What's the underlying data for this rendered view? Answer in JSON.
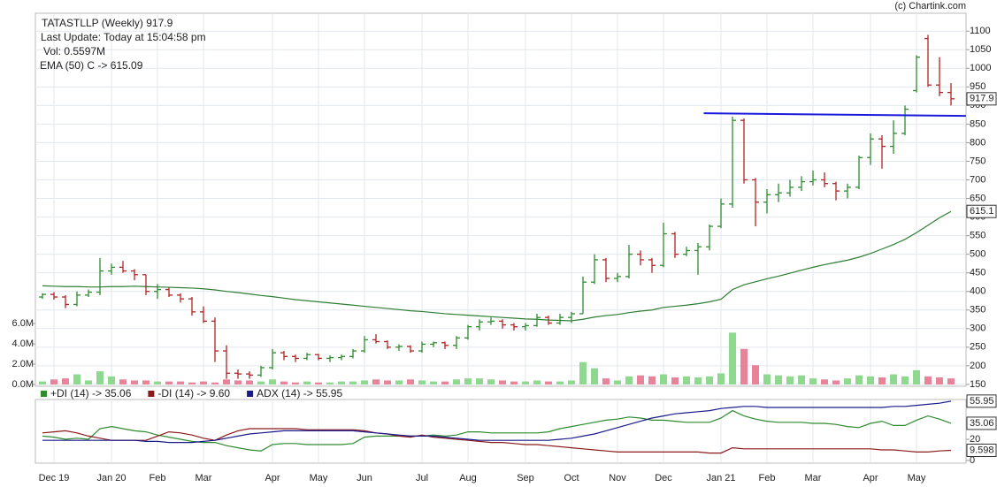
{
  "chart_data": {
    "type": "ohlc",
    "title": "TATASTLLP (Weekly) 917.9",
    "last_update": "Last Update: Today at 15:04:58 pm",
    "volume_text": "Vol: 0.5597M",
    "credit": "(c) Chartink.com",
    "categories": [
      null,
      "Dec 19",
      null,
      null,
      null,
      null,
      "Jan 20",
      null,
      null,
      null,
      "Feb",
      null,
      null,
      null,
      "Mar",
      null,
      null,
      null,
      null,
      null,
      "Apr",
      null,
      null,
      null,
      "May",
      null,
      null,
      null,
      "Jun",
      null,
      null,
      null,
      null,
      "Jul",
      null,
      null,
      null,
      "Aug",
      null,
      null,
      null,
      null,
      "Sep",
      null,
      null,
      null,
      "Oct",
      null,
      null,
      null,
      "Nov",
      null,
      null,
      null,
      "Dec",
      null,
      null,
      null,
      null,
      "Jan 21",
      null,
      null,
      null,
      "Feb",
      null,
      null,
      null,
      "Mar",
      null,
      null,
      null,
      null,
      "Apr",
      null,
      null,
      null,
      "May",
      null,
      null,
      null
    ],
    "open": [
      385,
      392,
      385,
      365,
      390,
      398,
      455,
      465,
      455,
      445,
      400,
      405,
      390,
      380,
      345,
      320,
      240,
      180,
      178,
      175,
      195,
      235,
      225,
      220,
      230,
      220,
      222,
      225,
      240,
      270,
      265,
      250,
      252,
      240,
      258,
      262,
      255,
      275,
      305,
      318,
      320,
      310,
      305,
      308,
      330,
      315,
      330,
      340,
      425,
      485,
      435,
      440,
      500,
      485,
      470,
      555,
      500,
      510,
      520,
      575,
      635,
      860,
      700,
      640,
      660,
      665,
      680,
      695,
      700,
      690,
      670,
      680,
      760,
      810,
      790,
      825,
      940,
      1080,
      955,
      935
    ],
    "high": [
      395,
      398,
      390,
      400,
      405,
      490,
      475,
      482,
      460,
      445,
      420,
      410,
      395,
      385,
      360,
      330,
      255,
      190,
      185,
      200,
      245,
      240,
      230,
      235,
      232,
      228,
      230,
      245,
      280,
      285,
      268,
      258,
      255,
      265,
      265,
      265,
      280,
      310,
      325,
      330,
      325,
      315,
      315,
      340,
      335,
      340,
      345,
      440,
      500,
      490,
      450,
      525,
      510,
      490,
      585,
      560,
      520,
      530,
      580,
      650,
      870,
      865,
      705,
      675,
      690,
      700,
      710,
      725,
      720,
      695,
      690,
      765,
      825,
      820,
      860,
      900,
      1035,
      1090,
      1030,
      960
    ],
    "low": [
      380,
      378,
      355,
      360,
      385,
      390,
      445,
      450,
      430,
      390,
      380,
      385,
      370,
      335,
      315,
      210,
      165,
      165,
      165,
      170,
      190,
      215,
      210,
      215,
      215,
      210,
      215,
      220,
      235,
      260,
      245,
      240,
      235,
      235,
      250,
      245,
      245,
      270,
      295,
      310,
      300,
      295,
      295,
      305,
      310,
      310,
      315,
      340,
      420,
      425,
      425,
      435,
      470,
      450,
      465,
      490,
      495,
      445,
      510,
      570,
      625,
      690,
      575,
      610,
      640,
      655,
      670,
      685,
      680,
      645,
      650,
      675,
      740,
      730,
      770,
      820,
      935,
      950,
      925,
      900
    ],
    "close": [
      392,
      385,
      365,
      390,
      398,
      455,
      465,
      455,
      445,
      400,
      405,
      390,
      380,
      345,
      320,
      240,
      180,
      178,
      175,
      195,
      235,
      225,
      220,
      230,
      220,
      222,
      225,
      240,
      270,
      265,
      250,
      252,
      240,
      258,
      262,
      255,
      275,
      305,
      318,
      320,
      310,
      305,
      308,
      330,
      315,
      330,
      340,
      425,
      485,
      435,
      440,
      500,
      485,
      470,
      555,
      500,
      510,
      520,
      575,
      635,
      860,
      700,
      640,
      660,
      665,
      680,
      695,
      700,
      690,
      670,
      680,
      760,
      810,
      790,
      825,
      890,
      1030,
      955,
      935,
      917.9
    ],
    "up_color": "#2e8b2e",
    "down_color": "#b22222",
    "ylim": [
      145,
      1148
    ],
    "yticks": [
      150,
      200,
      250,
      300,
      350,
      400,
      450,
      500,
      550,
      600,
      650,
      700,
      750,
      800,
      850,
      900,
      950,
      1000,
      1050,
      1100
    ],
    "grid": true,
    "volume": {
      "values": [
        0.3,
        0.5,
        0.6,
        1.0,
        0.4,
        1.3,
        0.8,
        0.5,
        0.4,
        0.4,
        0.3,
        0.3,
        0.3,
        0.2,
        0.3,
        0.2,
        0.5,
        0.4,
        0.4,
        0.3,
        0.5,
        0.3,
        0.2,
        0.3,
        0.2,
        0.2,
        0.3,
        0.3,
        0.4,
        0.5,
        0.4,
        0.4,
        0.5,
        0.4,
        0.3,
        0.3,
        0.5,
        0.6,
        0.6,
        0.5,
        0.4,
        0.3,
        0.3,
        0.4,
        0.3,
        0.3,
        0.4,
        2.2,
        1.6,
        0.6,
        0.4,
        0.8,
        0.9,
        0.8,
        1.0,
        0.7,
        0.8,
        0.7,
        0.8,
        1.1,
        5.1,
        3.5,
        1.9,
        1.0,
        0.9,
        0.8,
        0.9,
        0.6,
        0.5,
        0.4,
        0.6,
        0.9,
        0.8,
        0.7,
        1.0,
        0.8,
        1.4,
        0.8,
        0.7,
        0.6
      ],
      "ylim": [
        -0.17,
        36.5
      ],
      "yticks": [
        {
          "value": 0,
          "label": "0.0M"
        },
        {
          "value": 2,
          "label": "2.0M"
        },
        {
          "value": 4,
          "label": "4.0M"
        },
        {
          "value": 6,
          "label": "6.0M"
        }
      ],
      "up_color": "#8fd88f",
      "down_color": "#e8849a"
    },
    "ema": {
      "name": "EMA (50) C -> 615.09",
      "color": "#2e7d32",
      "values": [
        415,
        414,
        413,
        413,
        412,
        412,
        413,
        413,
        414,
        413,
        412,
        411,
        410,
        409,
        407,
        404,
        400,
        397,
        393,
        389,
        386,
        382,
        378,
        375,
        372,
        369,
        366,
        363,
        360,
        357,
        354,
        351,
        348,
        346,
        343,
        340,
        338,
        336,
        334,
        332,
        330,
        328,
        326,
        325,
        323,
        322,
        321,
        325,
        331,
        335,
        338,
        343,
        347,
        350,
        357,
        360,
        363,
        367,
        372,
        379,
        405,
        418,
        426,
        434,
        441,
        449,
        457,
        465,
        472,
        478,
        484,
        492,
        502,
        514,
        526,
        540,
        558,
        578,
        598,
        615.09
      ],
      "last_label": "615.1"
    },
    "trendline": {
      "color": "#1a1adb",
      "x": [
        57.5,
        80.3
      ],
      "y": [
        879,
        872
      ]
    },
    "indicator": {
      "ylim": [
        -2.5,
        57.5
      ],
      "yticks": [
        0,
        20
      ],
      "series": [
        {
          "name": "+DI (14) -> 35.06",
          "color": "#2e8b2e",
          "values": [
            23,
            22,
            20,
            21,
            20,
            30,
            32,
            30,
            28,
            27,
            24,
            22,
            20,
            18,
            17,
            17,
            14,
            12,
            10,
            9,
            15,
            16,
            16,
            15,
            15,
            15,
            15,
            16,
            22,
            23,
            23,
            23,
            23,
            23,
            24,
            23,
            24,
            27,
            27,
            26,
            26,
            26,
            26,
            26,
            27,
            30,
            32,
            34,
            36,
            38,
            39,
            41,
            40,
            38,
            38,
            37,
            36,
            36,
            36,
            40,
            47,
            42,
            39,
            37,
            36,
            36,
            36,
            35,
            35,
            34,
            32,
            31,
            35,
            37,
            33,
            33,
            38,
            42,
            39,
            35.06
          ]
        },
        {
          "name": "-DI (14) -> 9.60",
          "color": "#8b1a1a",
          "values": [
            26,
            27,
            28,
            26,
            23,
            21,
            19,
            19,
            19,
            19,
            23,
            27,
            26,
            24,
            21,
            19,
            24,
            28,
            30,
            30,
            30,
            30,
            30,
            29,
            29,
            29,
            29,
            29,
            28,
            26,
            25,
            23,
            22,
            24,
            22,
            21,
            20,
            19,
            18,
            17,
            17,
            16,
            15,
            15,
            14,
            13,
            12,
            11,
            10,
            9,
            8,
            8,
            8,
            8,
            8,
            8,
            8,
            8,
            7,
            7,
            12,
            11,
            11,
            11,
            11,
            11,
            11,
            11,
            11,
            11,
            11,
            11,
            11,
            10,
            10,
            9,
            8,
            8,
            9,
            9.598
          ]
        },
        {
          "name": "ADX (14) -> 55.95",
          "color": "#1a1a8b",
          "values": [
            19,
            19,
            19,
            19,
            19,
            19,
            19,
            19,
            19,
            18,
            18,
            17,
            17,
            17,
            18,
            19,
            21,
            23,
            25,
            26,
            27,
            28,
            28,
            28,
            28,
            28,
            28,
            28,
            27,
            26,
            25,
            24,
            23,
            23,
            23,
            22,
            21,
            20,
            19,
            19,
            19,
            19,
            19,
            19,
            19,
            20,
            21,
            23,
            25,
            28,
            31,
            34,
            37,
            40,
            42,
            44,
            45,
            46,
            47,
            49,
            50,
            51,
            51,
            50,
            50,
            50,
            50,
            50,
            50,
            50,
            50,
            50,
            50,
            50,
            51,
            51,
            52,
            53,
            54,
            55.95
          ]
        }
      ]
    }
  }
}
